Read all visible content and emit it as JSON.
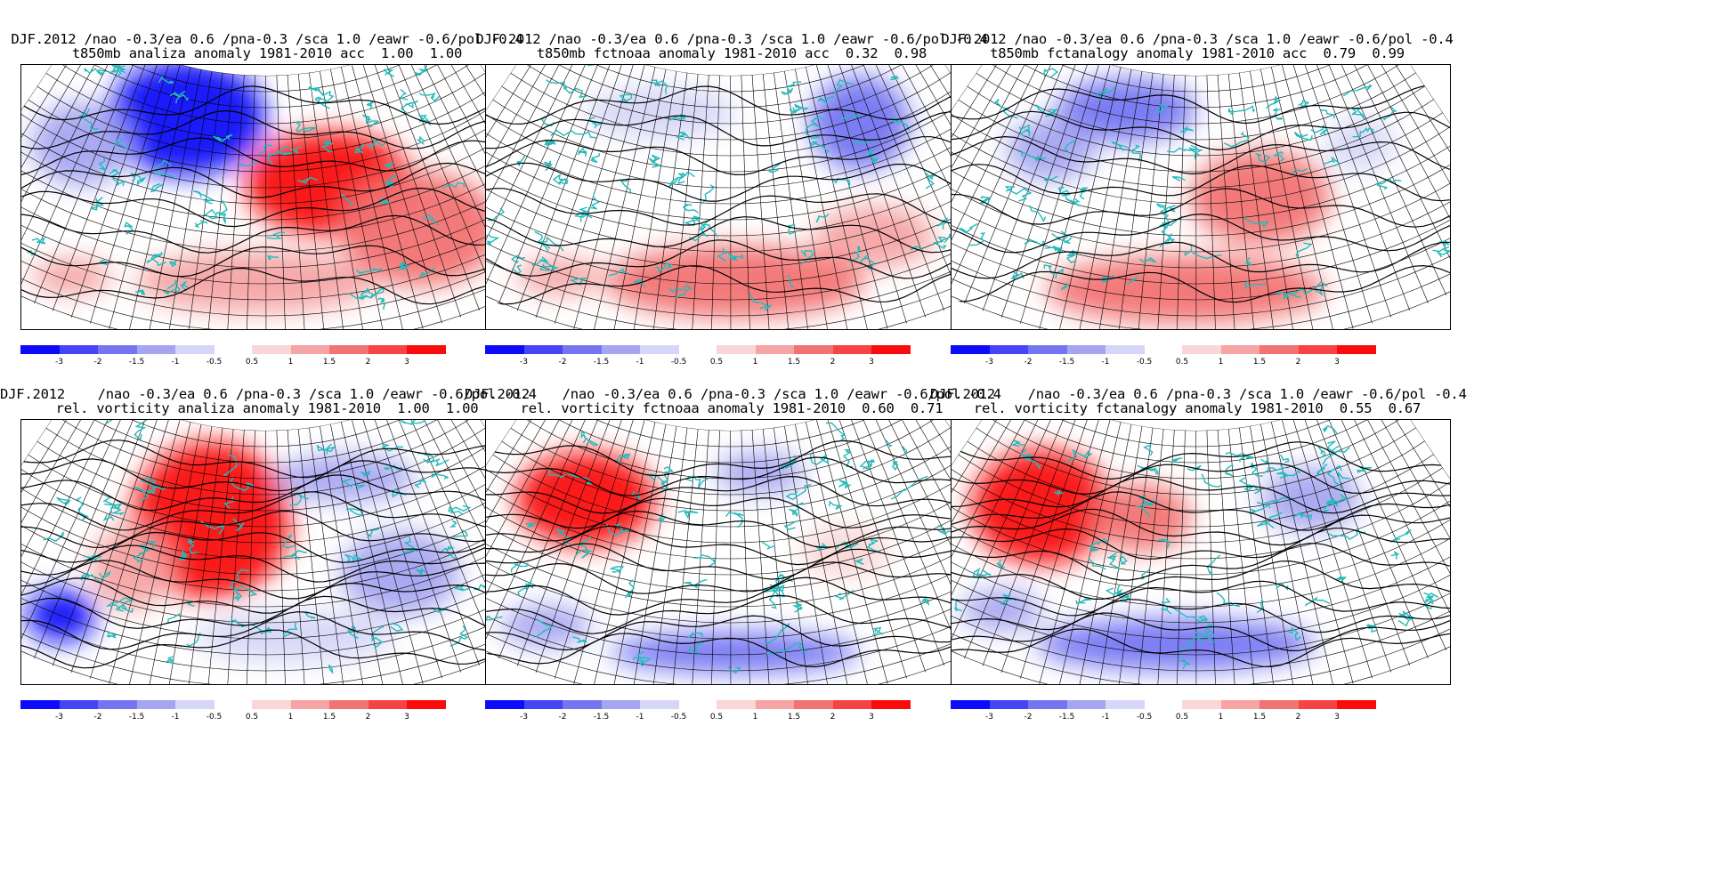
{
  "figure": {
    "panels": [
      {
        "id": "t850-analiza",
        "title_line1": "DJF.2012 /nao -0.3/ea 0.6 /pna-0.3 /sca 1.0 /eawr -0.6/pol -0.4",
        "title_line2": "t850mb analiza anomaly 1981-2010 acc  1.00  1.00",
        "variable": "t850"
      },
      {
        "id": "t850-fctnoaa",
        "title_line1": "DJF.2012 /nao -0.3/ea 0.6 /pna-0.3 /sca 1.0 /eawr -0.6/pol -0.4",
        "title_line2": "t850mb fctnoaa anomaly 1981-2010 acc  0.32  0.98",
        "variable": "t850"
      },
      {
        "id": "t850-fctanalogy",
        "title_line1": "DJF.2012 /nao -0.3/ea 0.6 /pna-0.3 /sca 1.0 /eawr -0.6/pol -0.4",
        "title_line2": "t850mb fctanalogy anomaly 1981-2010 acc  0.79  0.99",
        "variable": "t850"
      },
      {
        "id": "vort-analiza",
        "title_line1": "DJF.2012    /nao -0.3/ea 0.6 /pna-0.3 /sca 1.0 /eawr -0.6/pol -0.4",
        "title_line2": "rel. vorticity analiza anomaly 1981-2010  1.00  1.00",
        "variable": "vorticity"
      },
      {
        "id": "vort-fctnoaa",
        "title_line1": "DJF.2012    /nao -0.3/ea 0.6 /pna-0.3 /sca 1.0 /eawr -0.6/pol -0.4",
        "title_line2": "rel. vorticity fctnoaa anomaly 1981-2010  0.60  0.71",
        "variable": "vorticity"
      },
      {
        "id": "vort-fctanalogy",
        "title_line1": "DJF.2012    /nao -0.3/ea 0.6 /pna-0.3 /sca 1.0 /eawr -0.6/pol -0.4",
        "title_line2": "rel. vorticity fctanalogy anomaly 1981-2010  0.55  0.67",
        "variable": "vorticity"
      }
    ],
    "colorbar": {
      "labels": [
        "-3",
        "-2",
        "-1.5",
        "-1",
        "-0.5",
        "0.5",
        "1",
        "1.5",
        "2",
        "3"
      ],
      "negative_colors": [
        "#0c0cfa",
        "#4545f6",
        "#7575f2",
        "#a5a5f1",
        "#d6d6f8"
      ],
      "positive_colors": [
        "#fad6d6",
        "#f6a4a4",
        "#f27373",
        "#f64444",
        "#fa0c0c"
      ]
    },
    "colors": {
      "coast": "#22bbbb",
      "contour": "#000000",
      "grid": "#000000"
    }
  }
}
